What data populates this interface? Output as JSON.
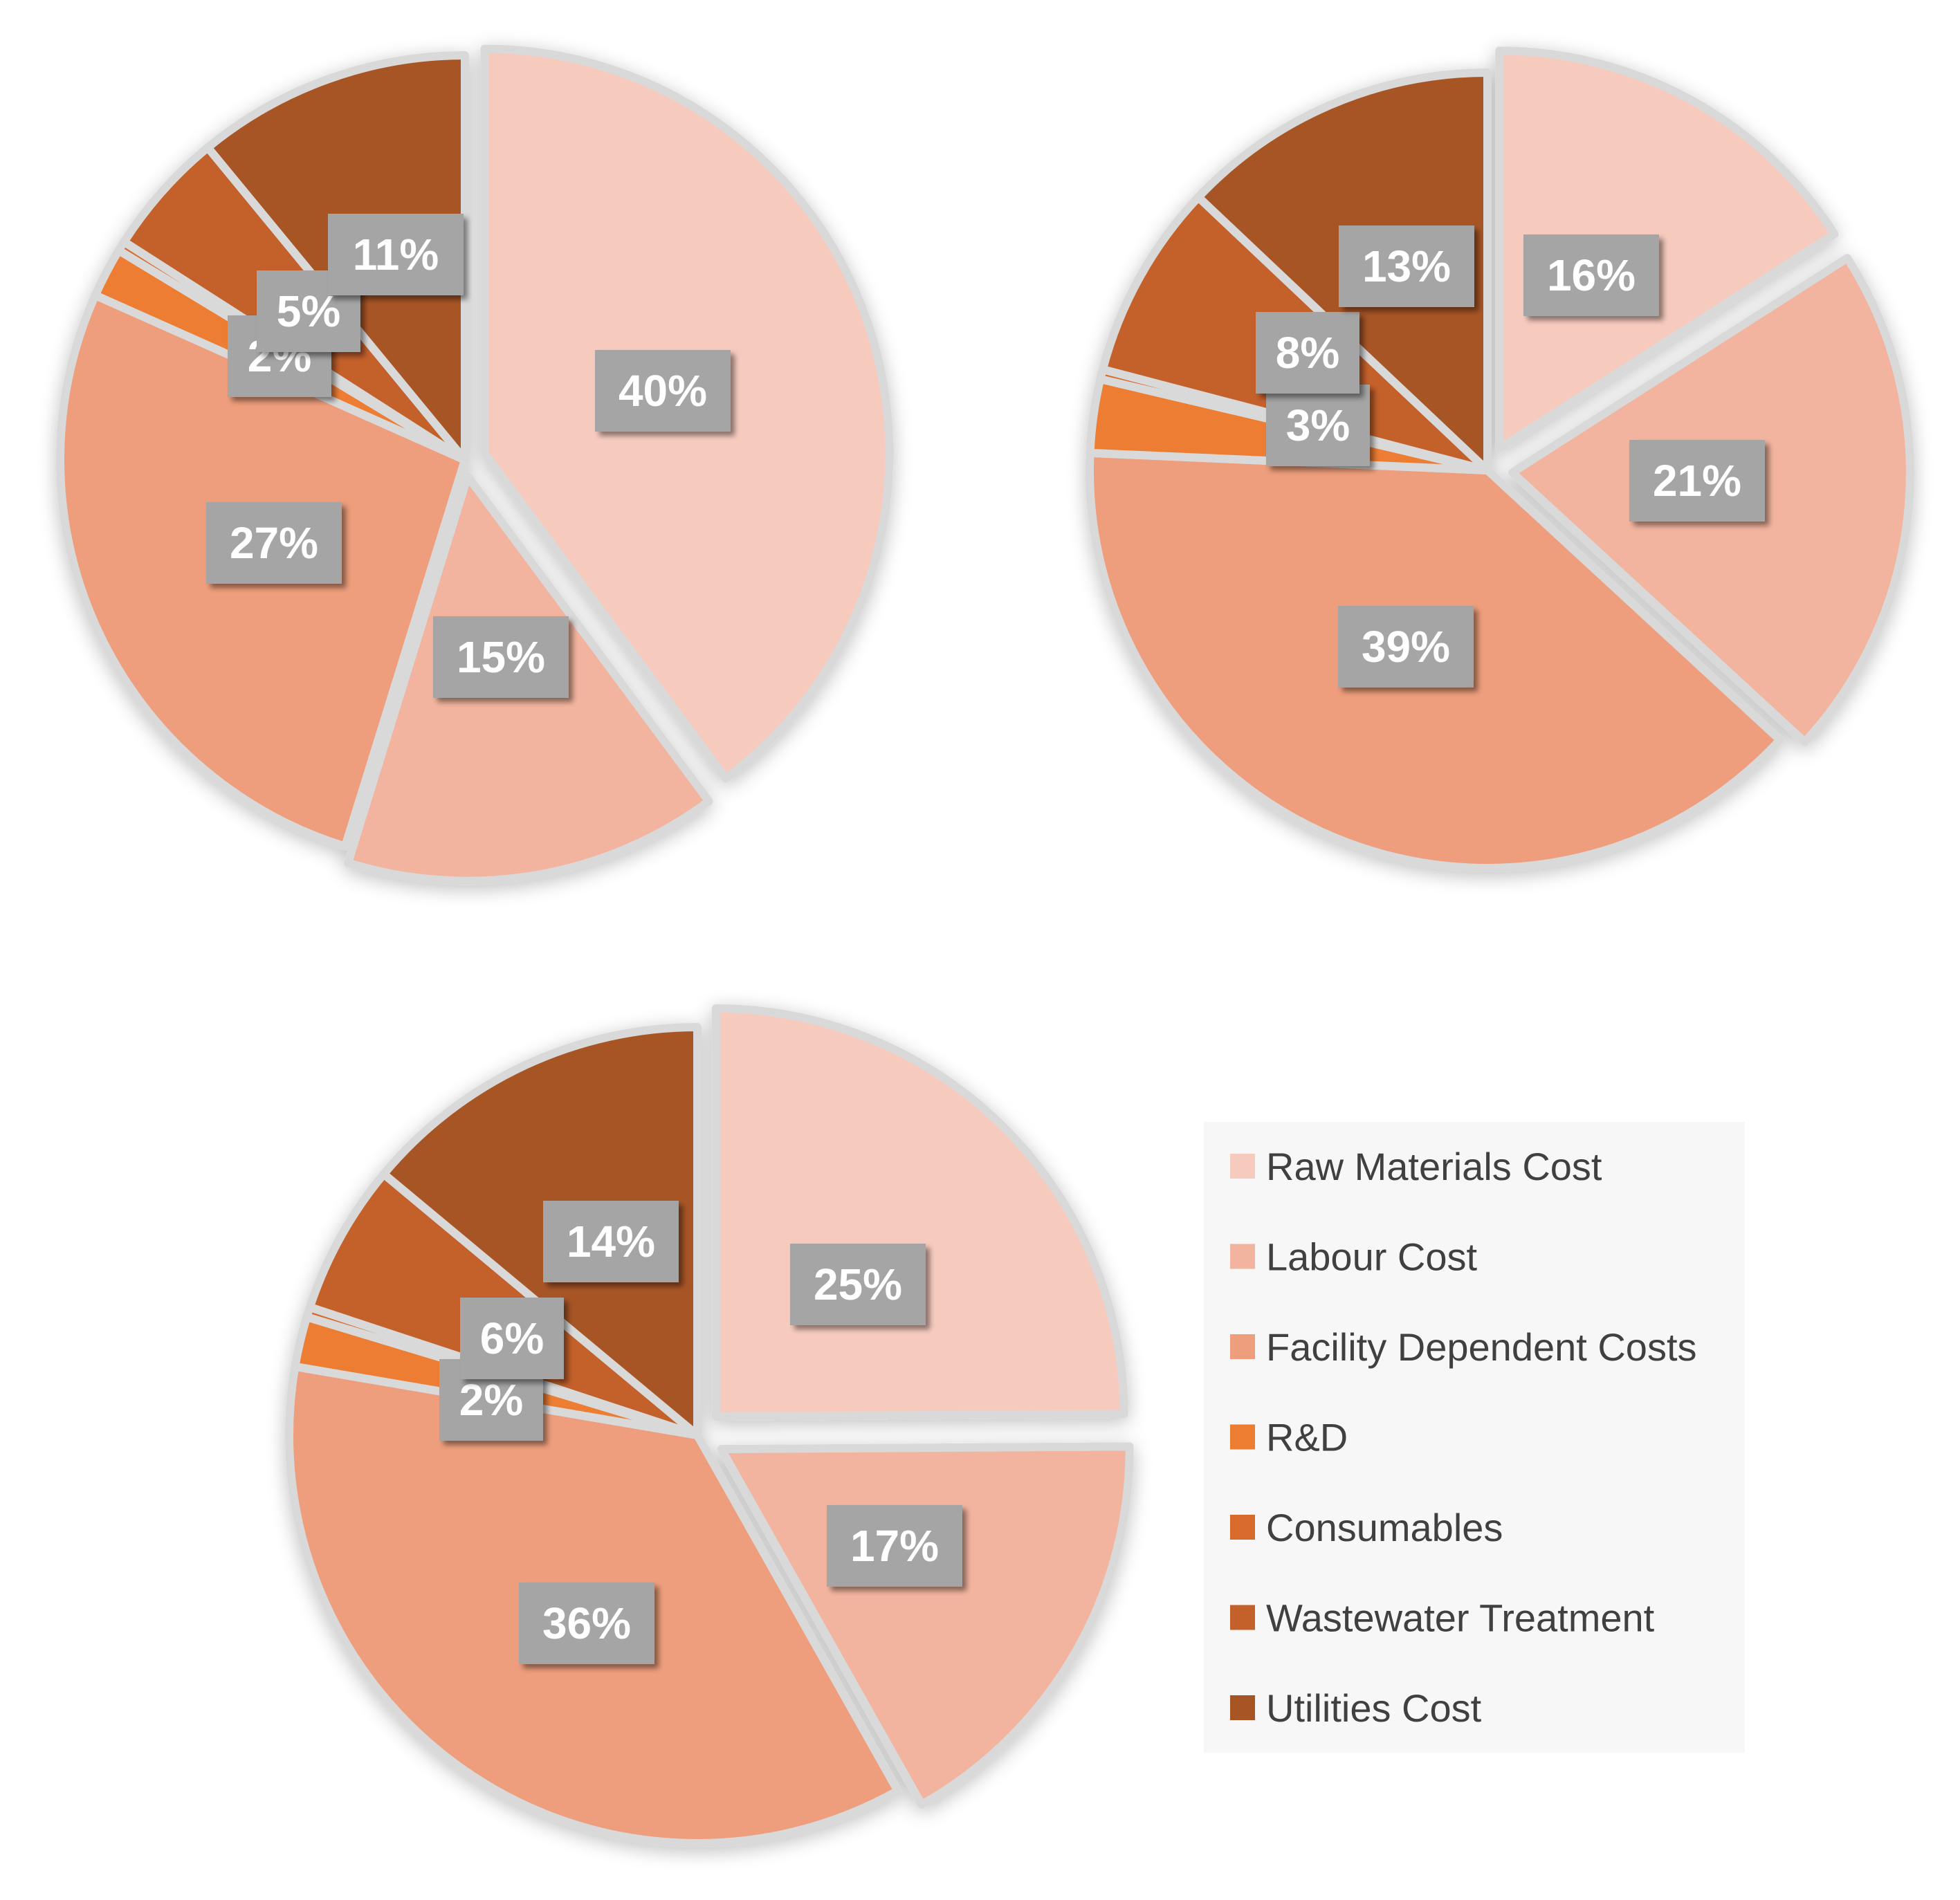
{
  "chart_data": [
    {
      "type": "pie",
      "categories": [
        "Raw Materials Cost",
        "Labour Cost",
        "Facility Dependent Costs",
        "R&D",
        "Consumables",
        "Wastewater Treatment",
        "Utilities Cost"
      ],
      "values": [
        40,
        15,
        27,
        2,
        0.4,
        5,
        11
      ],
      "labels": [
        "40%",
        "15%",
        "27%",
        "2%",
        "",
        "5%",
        "11%"
      ]
    },
    {
      "type": "pie",
      "categories": [
        "Raw Materials Cost",
        "Labour Cost",
        "Facility Dependent Costs",
        "R&D",
        "Consumables",
        "Wastewater Treatment",
        "Utilities Cost"
      ],
      "values": [
        16,
        21,
        39,
        3,
        0.4,
        8,
        13
      ],
      "labels": [
        "16%",
        "21%",
        "39%",
        "3%",
        "",
        "8%",
        "13%"
      ]
    },
    {
      "type": "pie",
      "categories": [
        "Raw Materials Cost",
        "Labour Cost",
        "Facility Dependent Costs",
        "R&D",
        "Consumables",
        "Wastewater Treatment",
        "Utilities Cost"
      ],
      "values": [
        25,
        17,
        36,
        2,
        0.4,
        6,
        14
      ],
      "labels": [
        "25%",
        "17%",
        "36%",
        "2%",
        "",
        "6%",
        "14%"
      ]
    }
  ],
  "legend": {
    "items": [
      {
        "label": "Raw Materials Cost",
        "color": "#F6CBBE"
      },
      {
        "label": "Labour Cost",
        "color": "#F2B49E"
      },
      {
        "label": "Facility Dependent Costs",
        "color": "#EE9E7C"
      },
      {
        "label": "R&D",
        "color": "#ED7D31"
      },
      {
        "label": "Consumables",
        "color": "#D86A2B"
      },
      {
        "label": "Wastewater Treatment",
        "color": "#C4612A"
      },
      {
        "label": "Utilities Cost",
        "color": "#A85525"
      }
    ]
  },
  "colors": {
    "separator": "#D9D9D9",
    "label_box": "#A5A5A5",
    "legend_bg": "#F7F7F7"
  }
}
